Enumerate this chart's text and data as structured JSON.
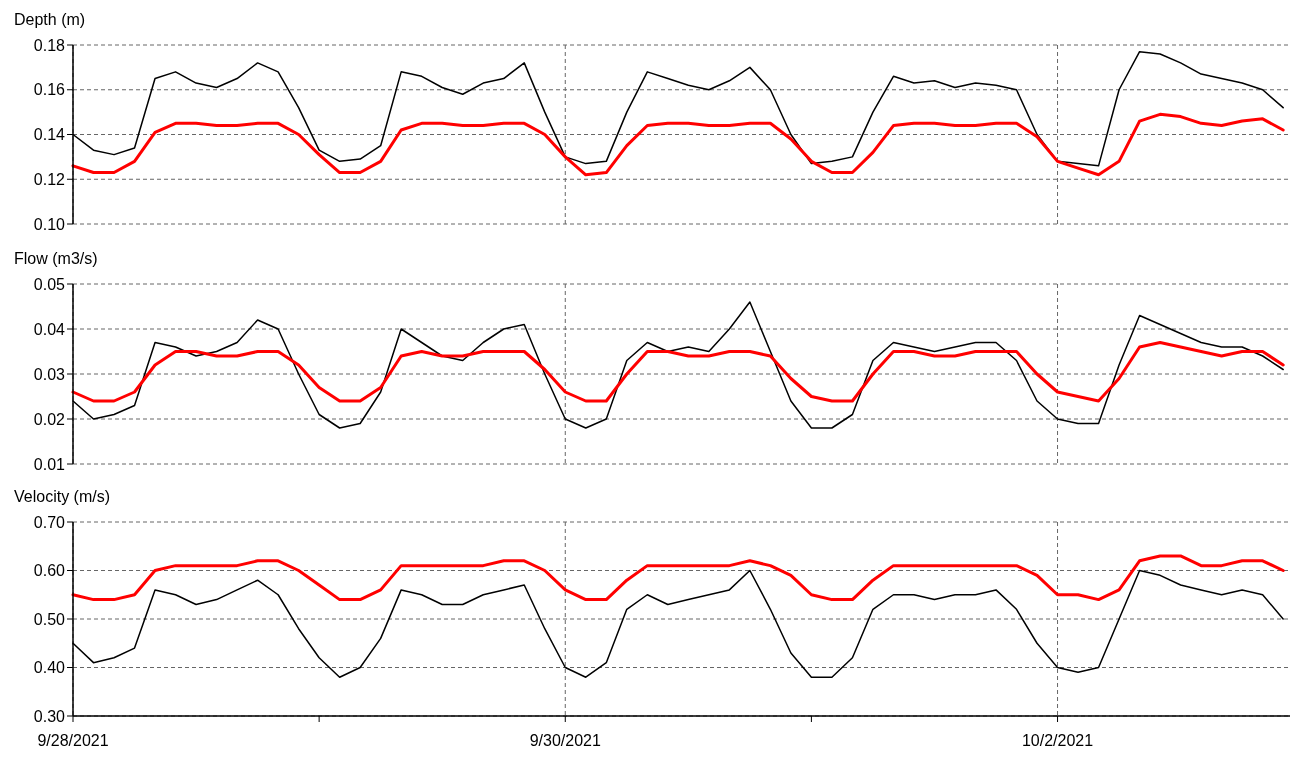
{
  "chart_data": [
    {
      "type": "line",
      "ylabel": "Depth (m)",
      "grid": true,
      "tick_labels": "y",
      "x": [
        "2021-09-28T00:00",
        "2021-09-28T02:00",
        "2021-09-28T04:00",
        "2021-09-28T06:00",
        "2021-09-28T08:00",
        "2021-09-28T10:00",
        "2021-09-28T12:00",
        "2021-09-28T14:00",
        "2021-09-28T16:00",
        "2021-09-28T18:00",
        "2021-09-28T20:00",
        "2021-09-28T22:00",
        "2021-09-29T00:00",
        "2021-09-29T02:00",
        "2021-09-29T04:00",
        "2021-09-29T06:00",
        "2021-09-29T08:00",
        "2021-09-29T10:00",
        "2021-09-29T12:00",
        "2021-09-29T14:00",
        "2021-09-29T16:00",
        "2021-09-29T18:00",
        "2021-09-29T20:00",
        "2021-09-29T22:00",
        "2021-09-30T00:00",
        "2021-09-30T02:00",
        "2021-09-30T04:00",
        "2021-09-30T06:00",
        "2021-09-30T08:00",
        "2021-09-30T10:00",
        "2021-09-30T12:00",
        "2021-09-30T14:00",
        "2021-09-30T16:00",
        "2021-09-30T18:00",
        "2021-09-30T20:00",
        "2021-09-30T22:00",
        "2021-10-01T00:00",
        "2021-10-01T02:00",
        "2021-10-01T04:00",
        "2021-10-01T06:00",
        "2021-10-01T08:00",
        "2021-10-01T10:00",
        "2021-10-01T12:00",
        "2021-10-01T14:00",
        "2021-10-01T16:00",
        "2021-10-01T18:00",
        "2021-10-01T20:00",
        "2021-10-01T22:00",
        "2021-10-02T00:00",
        "2021-10-02T02:00",
        "2021-10-02T04:00",
        "2021-10-02T06:00",
        "2021-10-02T08:00",
        "2021-10-02T10:00",
        "2021-10-02T12:00",
        "2021-10-02T14:00",
        "2021-10-02T16:00",
        "2021-10-02T18:00",
        "2021-10-02T20:00",
        "2021-10-02T22:00"
      ],
      "xlim": [
        "2021-09-28T00:00",
        "2021-10-02T22:40"
      ],
      "xticks": [
        {
          "value": "2021-09-28T00:00",
          "label": null
        },
        {
          "value": "2021-09-30T00:00",
          "label": null
        },
        {
          "value": "2021-10-02T00:00",
          "label": null
        }
      ],
      "ylim": [
        0.1,
        0.18
      ],
      "yticks": [
        {
          "value": 0.1,
          "label": "0.10"
        },
        {
          "value": 0.12,
          "label": "0.12"
        },
        {
          "value": 0.14,
          "label": "0.14"
        },
        {
          "value": 0.16,
          "label": "0.16"
        },
        {
          "value": 0.18,
          "label": "0.18"
        }
      ],
      "series": [
        {
          "color": "#000000",
          "values": [
            0.14,
            0.133,
            0.131,
            0.134,
            0.165,
            0.168,
            0.163,
            0.161,
            0.165,
            0.172,
            0.168,
            0.152,
            0.133,
            0.128,
            0.129,
            0.135,
            0.168,
            0.166,
            0.161,
            0.158,
            0.163,
            0.165,
            0.172,
            0.15,
            0.13,
            0.127,
            0.128,
            0.15,
            0.168,
            0.165,
            0.162,
            0.16,
            0.164,
            0.17,
            0.16,
            0.14,
            0.127,
            0.128,
            0.13,
            0.15,
            0.166,
            0.163,
            0.164,
            0.161,
            0.163,
            0.162,
            0.16,
            0.14,
            0.128,
            0.127,
            0.126,
            0.16,
            0.177,
            0.176,
            0.172,
            0.167,
            0.165,
            0.163,
            0.16,
            0.152
          ]
        },
        {
          "color": "#ff0000",
          "values": [
            0.126,
            0.123,
            0.123,
            0.128,
            0.141,
            0.145,
            0.145,
            0.144,
            0.144,
            0.145,
            0.145,
            0.14,
            0.131,
            0.123,
            0.123,
            0.128,
            0.142,
            0.145,
            0.145,
            0.144,
            0.144,
            0.145,
            0.145,
            0.14,
            0.13,
            0.122,
            0.123,
            0.135,
            0.144,
            0.145,
            0.145,
            0.144,
            0.144,
            0.145,
            0.145,
            0.138,
            0.128,
            0.123,
            0.123,
            0.132,
            0.144,
            0.145,
            0.145,
            0.144,
            0.144,
            0.145,
            0.145,
            0.139,
            0.128,
            0.125,
            0.122,
            0.128,
            0.146,
            0.149,
            0.148,
            0.145,
            0.144,
            0.146,
            0.147,
            0.142
          ]
        }
      ]
    },
    {
      "type": "line",
      "ylabel": "Flow (m3/s)",
      "grid": true,
      "tick_labels": "y",
      "x": [
        "2021-09-28T00:00",
        "2021-09-28T02:00",
        "2021-09-28T04:00",
        "2021-09-28T06:00",
        "2021-09-28T08:00",
        "2021-09-28T10:00",
        "2021-09-28T12:00",
        "2021-09-28T14:00",
        "2021-09-28T16:00",
        "2021-09-28T18:00",
        "2021-09-28T20:00",
        "2021-09-28T22:00",
        "2021-09-29T00:00",
        "2021-09-29T02:00",
        "2021-09-29T04:00",
        "2021-09-29T06:00",
        "2021-09-29T08:00",
        "2021-09-29T10:00",
        "2021-09-29T12:00",
        "2021-09-29T14:00",
        "2021-09-29T16:00",
        "2021-09-29T18:00",
        "2021-09-29T20:00",
        "2021-09-29T22:00",
        "2021-09-30T00:00",
        "2021-09-30T02:00",
        "2021-09-30T04:00",
        "2021-09-30T06:00",
        "2021-09-30T08:00",
        "2021-09-30T10:00",
        "2021-09-30T12:00",
        "2021-09-30T14:00",
        "2021-09-30T16:00",
        "2021-09-30T18:00",
        "2021-09-30T20:00",
        "2021-09-30T22:00",
        "2021-10-01T00:00",
        "2021-10-01T02:00",
        "2021-10-01T04:00",
        "2021-10-01T06:00",
        "2021-10-01T08:00",
        "2021-10-01T10:00",
        "2021-10-01T12:00",
        "2021-10-01T14:00",
        "2021-10-01T16:00",
        "2021-10-01T18:00",
        "2021-10-01T20:00",
        "2021-10-01T22:00",
        "2021-10-02T00:00",
        "2021-10-02T02:00",
        "2021-10-02T04:00",
        "2021-10-02T06:00",
        "2021-10-02T08:00",
        "2021-10-02T10:00",
        "2021-10-02T12:00",
        "2021-10-02T14:00",
        "2021-10-02T16:00",
        "2021-10-02T18:00",
        "2021-10-02T20:00",
        "2021-10-02T22:00"
      ],
      "xlim": [
        "2021-09-28T00:00",
        "2021-10-02T22:40"
      ],
      "xticks": [
        {
          "value": "2021-09-28T00:00",
          "label": null
        },
        {
          "value": "2021-09-30T00:00",
          "label": null
        },
        {
          "value": "2021-10-02T00:00",
          "label": null
        }
      ],
      "ylim": [
        0.01,
        0.05
      ],
      "yticks": [
        0.01,
        0.02,
        0.03,
        0.04,
        0.05
      ],
      "series": [
        {
          "color": "#000000",
          "values": [
            0.024,
            0.02,
            0.021,
            0.023,
            0.037,
            0.036,
            0.034,
            0.035,
            0.037,
            0.042,
            0.04,
            0.03,
            0.021,
            0.018,
            0.019,
            0.026,
            0.04,
            0.037,
            0.034,
            0.033,
            0.037,
            0.04,
            0.041,
            0.03,
            0.02,
            0.018,
            0.02,
            0.033,
            0.037,
            0.035,
            0.036,
            0.035,
            0.04,
            0.046,
            0.035,
            0.024,
            0.018,
            0.018,
            0.021,
            0.033,
            0.037,
            0.036,
            0.035,
            0.036,
            0.037,
            0.037,
            0.033,
            0.024,
            0.02,
            0.019,
            0.019,
            0.032,
            0.043,
            0.041,
            0.039,
            0.037,
            0.036,
            0.036,
            0.034,
            0.031
          ]
        },
        {
          "color": "#ff0000",
          "values": [
            0.026,
            0.024,
            0.024,
            0.026,
            0.032,
            0.035,
            0.035,
            0.034,
            0.034,
            0.035,
            0.035,
            0.032,
            0.027,
            0.024,
            0.024,
            0.027,
            0.034,
            0.035,
            0.034,
            0.034,
            0.035,
            0.035,
            0.035,
            0.031,
            0.026,
            0.024,
            0.024,
            0.03,
            0.035,
            0.035,
            0.034,
            0.034,
            0.035,
            0.035,
            0.034,
            0.029,
            0.025,
            0.024,
            0.024,
            0.03,
            0.035,
            0.035,
            0.034,
            0.034,
            0.035,
            0.035,
            0.035,
            0.03,
            0.026,
            0.025,
            0.024,
            0.029,
            0.036,
            0.037,
            0.036,
            0.035,
            0.034,
            0.035,
            0.035,
            0.032
          ]
        }
      ]
    },
    {
      "type": "line",
      "ylabel": "Velocity (m/s)",
      "grid": true,
      "x": [
        "2021-09-28T00:00",
        "2021-09-28T02:00",
        "2021-09-28T04:00",
        "2021-09-28T06:00",
        "2021-09-28T08:00",
        "2021-09-28T10:00",
        "2021-09-28T12:00",
        "2021-09-28T14:00",
        "2021-09-28T16:00",
        "2021-09-28T18:00",
        "2021-09-28T20:00",
        "2021-09-28T22:00",
        "2021-09-29T00:00",
        "2021-09-29T02:00",
        "2021-09-29T04:00",
        "2021-09-29T06:00",
        "2021-09-29T08:00",
        "2021-09-29T10:00",
        "2021-09-29T12:00",
        "2021-09-29T14:00",
        "2021-09-29T16:00",
        "2021-09-29T18:00",
        "2021-09-29T20:00",
        "2021-09-29T22:00",
        "2021-09-30T00:00",
        "2021-09-30T02:00",
        "2021-09-30T04:00",
        "2021-09-30T06:00",
        "2021-09-30T08:00",
        "2021-09-30T10:00",
        "2021-09-30T12:00",
        "2021-09-30T14:00",
        "2021-09-30T16:00",
        "2021-09-30T18:00",
        "2021-09-30T20:00",
        "2021-09-30T22:00",
        "2021-10-01T00:00",
        "2021-10-01T02:00",
        "2021-10-01T04:00",
        "2021-10-01T06:00",
        "2021-10-01T08:00",
        "2021-10-01T10:00",
        "2021-10-01T12:00",
        "2021-10-01T14:00",
        "2021-10-01T16:00",
        "2021-10-01T18:00",
        "2021-10-01T20:00",
        "2021-10-01T22:00",
        "2021-10-02T00:00",
        "2021-10-02T02:00",
        "2021-10-02T04:00",
        "2021-10-02T06:00",
        "2021-10-02T08:00",
        "2021-10-02T10:00",
        "2021-10-02T12:00",
        "2021-10-02T14:00",
        "2021-10-02T16:00",
        "2021-10-02T18:00",
        "2021-10-02T20:00",
        "2021-10-02T22:00"
      ],
      "xlim": [
        "2021-09-28T00:00",
        "2021-10-02T22:40"
      ],
      "xticks": [
        {
          "value": "2021-09-28T00:00",
          "label": "9/28/2021"
        },
        {
          "value": "2021-09-29T00:00",
          "label": null
        },
        {
          "value": "2021-09-30T00:00",
          "label": "9/30/2021"
        },
        {
          "value": "2021-10-01T00:00",
          "label": null
        },
        {
          "value": "2021-10-02T00:00",
          "label": "10/2/2021"
        }
      ],
      "ylim": [
        0.3,
        0.7
      ],
      "yticks": [
        {
          "value": 0.3,
          "label": "0.30"
        },
        {
          "value": 0.4,
          "label": "0.40"
        },
        {
          "value": 0.5,
          "label": "0.50"
        },
        {
          "value": 0.6,
          "label": "0.60"
        },
        {
          "value": 0.7,
          "label": "0.70"
        }
      ],
      "series": [
        {
          "color": "#000000",
          "values": [
            0.45,
            0.41,
            0.42,
            0.44,
            0.56,
            0.55,
            0.53,
            0.54,
            0.56,
            0.58,
            0.55,
            0.48,
            0.42,
            0.38,
            0.4,
            0.46,
            0.56,
            0.55,
            0.53,
            0.53,
            0.55,
            0.56,
            0.57,
            0.48,
            0.4,
            0.38,
            0.41,
            0.52,
            0.55,
            0.53,
            0.54,
            0.55,
            0.56,
            0.6,
            0.52,
            0.43,
            0.38,
            0.38,
            0.42,
            0.52,
            0.55,
            0.55,
            0.54,
            0.55,
            0.55,
            0.56,
            0.52,
            0.45,
            0.4,
            0.39,
            0.4,
            0.5,
            0.6,
            0.59,
            0.57,
            0.56,
            0.55,
            0.56,
            0.55,
            0.5
          ]
        },
        {
          "color": "#ff0000",
          "values": [
            0.55,
            0.54,
            0.54,
            0.55,
            0.6,
            0.61,
            0.61,
            0.61,
            0.61,
            0.62,
            0.62,
            0.6,
            0.57,
            0.54,
            0.54,
            0.56,
            0.61,
            0.61,
            0.61,
            0.61,
            0.61,
            0.62,
            0.62,
            0.6,
            0.56,
            0.54,
            0.54,
            0.58,
            0.61,
            0.61,
            0.61,
            0.61,
            0.61,
            0.62,
            0.61,
            0.59,
            0.55,
            0.54,
            0.54,
            0.58,
            0.61,
            0.61,
            0.61,
            0.61,
            0.61,
            0.61,
            0.61,
            0.59,
            0.55,
            0.55,
            0.54,
            0.56,
            0.62,
            0.63,
            0.63,
            0.61,
            0.61,
            0.62,
            0.62,
            0.6
          ]
        }
      ]
    }
  ]
}
